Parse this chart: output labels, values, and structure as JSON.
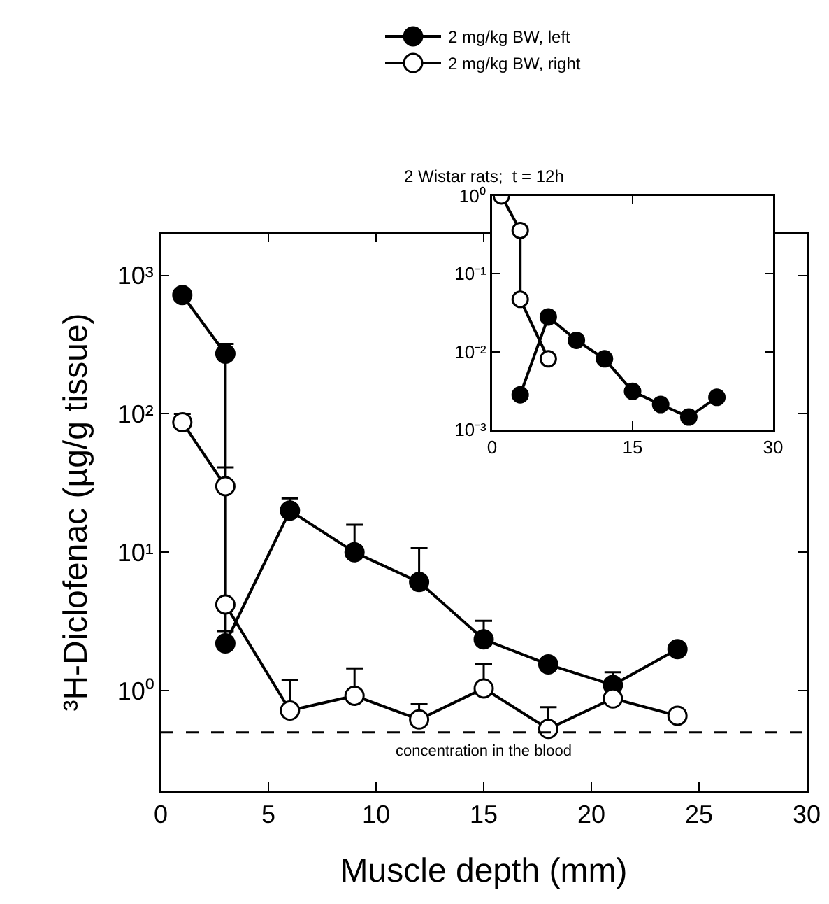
{
  "chart_data": [
    {
      "type": "line",
      "subtitle": "2 Wistar rats;  t = 12h",
      "xlabel": "Muscle depth (mm)",
      "ylabel": "³H-Diclofenac (µg/g tissue)",
      "x": [
        1,
        3,
        3,
        6,
        9,
        12,
        15,
        18,
        21,
        24
      ],
      "series": [
        {
          "name": "2 mg/kg BW, left",
          "color": "#000000",
          "values": [
            720,
            272,
            2.2,
            20,
            10,
            6.1,
            2.35,
            1.55,
            1.1,
            2.0
          ],
          "errors": [
            null,
            [
              272,
              320
            ],
            [
              2.2,
              2.7
            ],
            [
              20,
              24.5
            ],
            [
              10,
              15.8
            ],
            [
              6.1,
              10.7
            ],
            [
              2.35,
              3.2
            ],
            null,
            [
              1.1,
              1.36
            ],
            null
          ]
        },
        {
          "name": "2 mg/kg BW, right",
          "color": "#000000",
          "values": [
            87,
            30,
            4.2,
            0.72,
            0.92,
            0.62,
            1.04,
            0.53,
            0.88,
            0.66
          ],
          "errors": [
            [
              87,
              100
            ],
            [
              30,
              41
            ],
            null,
            [
              0.72,
              1.19
            ],
            [
              0.92,
              1.45
            ],
            [
              0.62,
              0.8
            ],
            [
              1.04,
              1.55
            ],
            [
              0.53,
              0.76
            ],
            null,
            null
          ]
        }
      ],
      "log": "y",
      "xlim": [
        0,
        30
      ],
      "xticks": [
        0,
        5,
        10,
        15,
        20,
        25,
        30
      ],
      "ylim": [
        0.19,
        2000
      ],
      "yticks": [
        {
          "value": 1,
          "label": "10⁰"
        },
        {
          "value": 10,
          "label": "10¹"
        },
        {
          "value": 100,
          "label": "10²"
        },
        {
          "value": 1000,
          "label": "10³"
        }
      ],
      "ref_lines": [
        {
          "axis": "y",
          "value": 0.5,
          "label": "concentration in the blood",
          "line_style": "dashed"
        }
      ],
      "grid": false,
      "legend": "top",
      "marker": "circle"
    },
    {
      "type": "line",
      "series": [
        {
          "color": "#000000",
          "x": [
            3,
            6,
            9,
            12,
            15,
            18,
            21,
            24
          ],
          "values": [
            0.0028,
            0.028,
            0.014,
            0.0081,
            0.0031,
            0.0021,
            0.00145,
            0.0026
          ]
        },
        {
          "color": "#000000",
          "x": [
            1,
            3,
            3,
            6
          ],
          "values": [
            1.0,
            0.36,
            0.047,
            0.0081
          ]
        }
      ],
      "log": "y",
      "xlim": [
        0,
        30
      ],
      "xticks": [
        0,
        15,
        30
      ],
      "ylim": [
        0.001,
        1
      ],
      "yticks": [
        {
          "value": 0.001,
          "label": "10⁻³"
        },
        {
          "value": 0.01,
          "label": "10⁻²"
        },
        {
          "value": 0.1,
          "label": "10⁻¹"
        },
        {
          "value": 1,
          "label": "10⁰"
        }
      ],
      "grid": false,
      "legend": false,
      "marker": "circle"
    }
  ]
}
